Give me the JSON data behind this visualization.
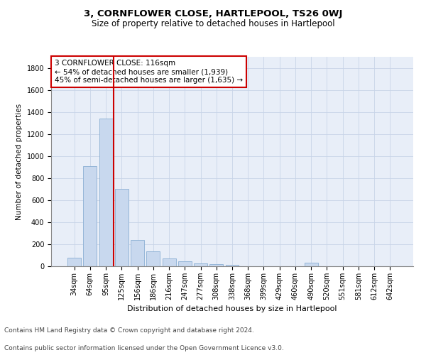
{
  "title": "3, CORNFLOWER CLOSE, HARTLEPOOL, TS26 0WJ",
  "subtitle": "Size of property relative to detached houses in Hartlepool",
  "xlabel": "Distribution of detached houses by size in Hartlepool",
  "ylabel": "Number of detached properties",
  "categories": [
    "34sqm",
    "64sqm",
    "95sqm",
    "125sqm",
    "156sqm",
    "186sqm",
    "216sqm",
    "247sqm",
    "277sqm",
    "308sqm",
    "338sqm",
    "368sqm",
    "399sqm",
    "429sqm",
    "460sqm",
    "490sqm",
    "520sqm",
    "551sqm",
    "581sqm",
    "612sqm",
    "642sqm"
  ],
  "values": [
    80,
    910,
    1340,
    700,
    240,
    135,
    70,
    45,
    25,
    20,
    15,
    0,
    0,
    0,
    0,
    30,
    0,
    0,
    0,
    0,
    0
  ],
  "bar_color": "#c8d8ee",
  "bar_edge_color": "#8bafd4",
  "vline_color": "#cc0000",
  "annotation_text": "3 CORNFLOWER CLOSE: 116sqm\n← 54% of detached houses are smaller (1,939)\n45% of semi-detached houses are larger (1,635) →",
  "annotation_box_color": "#ffffff",
  "annotation_box_edge": "#cc0000",
  "ylim": [
    0,
    1900
  ],
  "yticks": [
    0,
    200,
    400,
    600,
    800,
    1000,
    1200,
    1400,
    1600,
    1800
  ],
  "grid_color": "#c8d4e8",
  "background_color": "#e8eef8",
  "footer1": "Contains HM Land Registry data © Crown copyright and database right 2024.",
  "footer2": "Contains public sector information licensed under the Open Government Licence v3.0.",
  "title_fontsize": 9.5,
  "subtitle_fontsize": 8.5,
  "xlabel_fontsize": 8,
  "ylabel_fontsize": 7.5,
  "tick_fontsize": 7,
  "annotation_fontsize": 7.5,
  "footer_fontsize": 6.5
}
